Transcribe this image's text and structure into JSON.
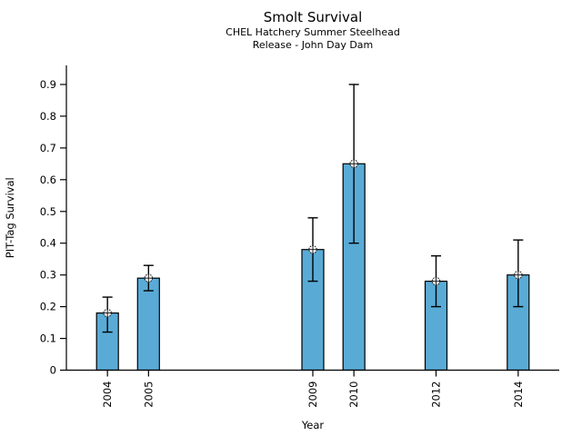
{
  "header": {
    "title": "Smolt Survival",
    "subtitle1": "CHEL Hatchery Summer Steelhead",
    "subtitle2": "Release - John Day Dam"
  },
  "chart_data": {
    "type": "bar",
    "title": "Smolt Survival",
    "subtitle1": "CHEL Hatchery Summer Steelhead",
    "subtitle2": "Release - John Day Dam",
    "xlabel": "Year",
    "ylabel": "PIT-Tag Survival",
    "categories": [
      "2004",
      "2005",
      "2009",
      "2010",
      "2012",
      "2014"
    ],
    "x_years": [
      2004,
      2005,
      2009,
      2010,
      2012,
      2014
    ],
    "values": [
      0.18,
      0.29,
      0.38,
      0.65,
      0.28,
      0.3
    ],
    "error_low": [
      0.12,
      0.25,
      0.28,
      0.4,
      0.2,
      0.2
    ],
    "error_high": [
      0.23,
      0.33,
      0.48,
      0.9,
      0.36,
      0.41
    ],
    "yticks": [
      0,
      0.1,
      0.2,
      0.3,
      0.4,
      0.5,
      0.6,
      0.7,
      0.8,
      0.9
    ],
    "ylim": [
      0,
      0.96
    ],
    "xlim_years": [
      2003,
      2015
    ],
    "grid": false,
    "legend": null,
    "bar_color": "#59abd6",
    "bar_edge_color": "#000000",
    "errorbar_color": "#000000",
    "marker": "circle-crosshair",
    "marker_fill": "#ffffff",
    "marker_stroke": "#1a1a1a"
  }
}
